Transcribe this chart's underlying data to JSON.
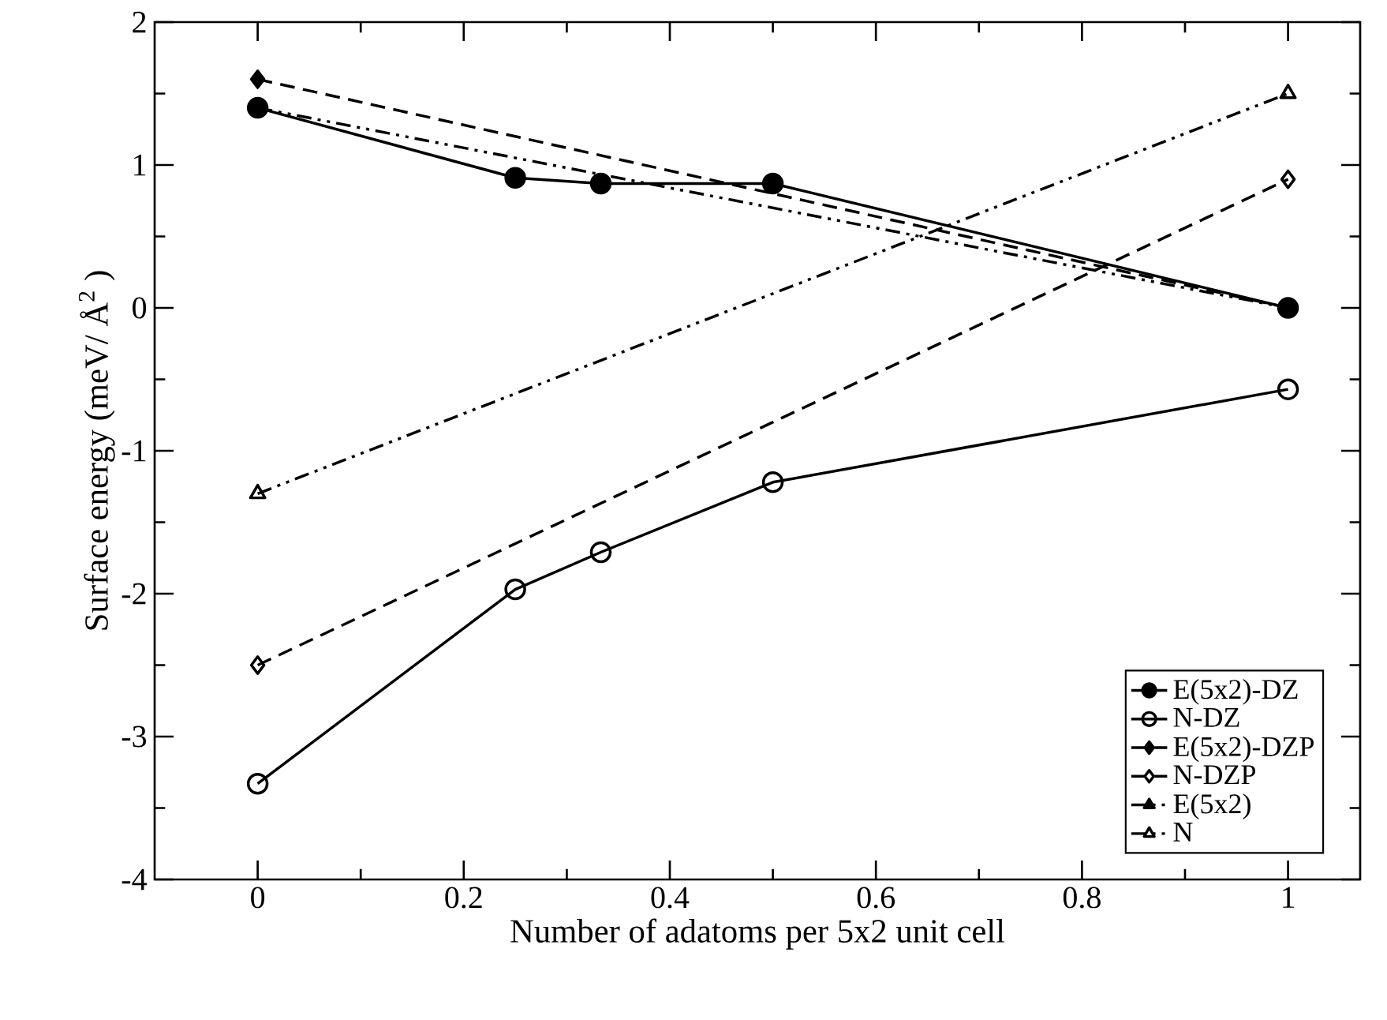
{
  "chart_data": {
    "type": "line",
    "xlabel": "Number of adatoms per 5x2 unit cell",
    "ylabel": "Surface energy (meV/ Å$^{2}$ )",
    "xlim": [
      -0.1,
      1.07
    ],
    "ylim": [
      -4,
      2
    ],
    "xticks": [
      0,
      0.2,
      0.4,
      0.6,
      0.8,
      1
    ],
    "yticks": [
      -4,
      -3,
      -2,
      -1,
      0,
      1,
      2
    ],
    "grid": false,
    "legend": "bottom right",
    "series": [
      {
        "name": "E(5x2)-DZ",
        "color": "#000000",
        "marker": "circle",
        "line_style": "solid",
        "x": [
          0,
          0.25,
          0.333,
          0.5,
          1
        ],
        "values": [
          1.4,
          0.91,
          0.87,
          0.87,
          0
        ]
      },
      {
        "name": "N-DZ",
        "color": "#000000",
        "marker": "circle-open",
        "line_style": "solid",
        "x": [
          0,
          0.25,
          0.333,
          0.5,
          1
        ],
        "values": [
          -3.33,
          -1.97,
          -1.71,
          -1.22,
          -0.57
        ]
      },
      {
        "name": "E(5x2)-DZP",
        "color": "#000000",
        "marker": "diamond",
        "line_style": "dashed",
        "x": [
          0,
          1
        ],
        "values": [
          1.6,
          0
        ]
      },
      {
        "name": "N-DZP",
        "color": "#000000",
        "marker": "diamond-open",
        "line_style": "dashed",
        "x": [
          0,
          1
        ],
        "values": [
          -2.5,
          0.9
        ]
      },
      {
        "name": "E(5x2)",
        "color": "#000000",
        "marker": "triangle",
        "line_style": "dashdotdot",
        "x": [
          0,
          1
        ],
        "values": [
          1.4,
          0
        ]
      },
      {
        "name": "N",
        "color": "#000000",
        "marker": "triangle-open",
        "line_style": "dashdotdot",
        "x": [
          0,
          1
        ],
        "values": [
          -1.3,
          1.5
        ]
      }
    ]
  }
}
